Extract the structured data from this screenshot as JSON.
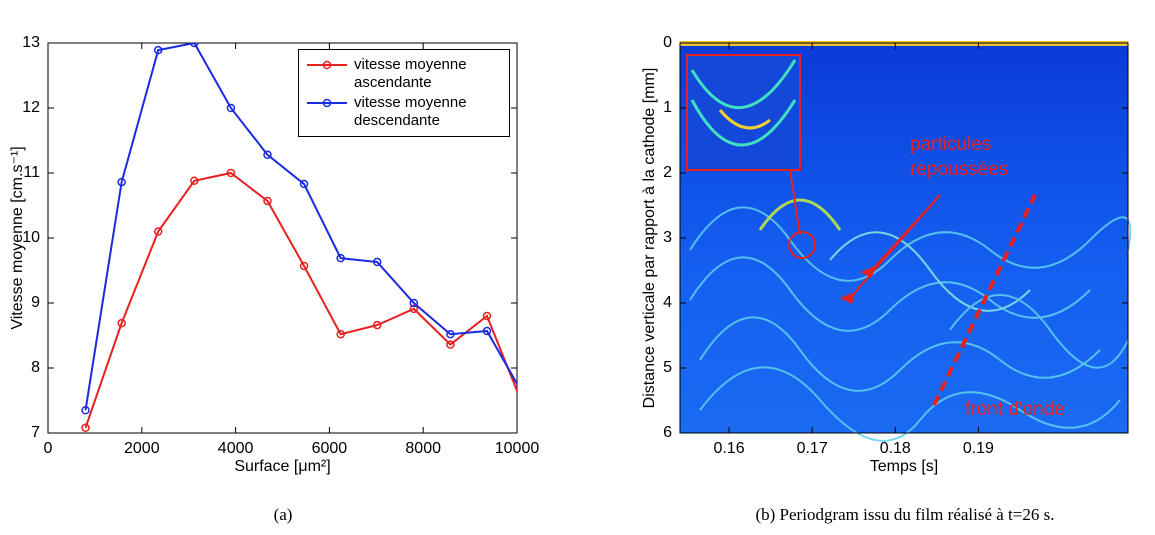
{
  "chart_data": [
    {
      "type": "line",
      "caption": "(a)",
      "xlabel": "Surface [μm²]",
      "ylabel": "Vitesse moyenne [cm.s⁻¹]",
      "x": [
        800,
        1570,
        2350,
        3120,
        3900,
        4680,
        5460,
        6240,
        7020,
        7800,
        8580,
        9360,
        10140
      ],
      "series": [
        {
          "name": "vitesse moyenne ascendante",
          "color": "#e82020",
          "values": [
            7.08,
            8.69,
            10.1,
            10.88,
            11.0,
            10.57,
            9.57,
            8.52,
            8.66,
            8.91,
            8.36,
            8.8,
            7.4
          ]
        },
        {
          "name": "vitesse moyenne descendante",
          "color": "#1a2be0",
          "values": [
            7.35,
            10.86,
            12.89,
            13.0,
            12.0,
            11.28,
            10.83,
            9.69,
            9.63,
            9.0,
            8.52,
            8.57,
            7.58
          ]
        }
      ],
      "xlim": [
        0,
        10000
      ],
      "xticks": [
        0,
        2000,
        4000,
        6000,
        8000,
        10000
      ],
      "ylim": [
        7,
        13
      ],
      "yticks": [
        7,
        8,
        9,
        10,
        11,
        12,
        13
      ],
      "legend": "upper right"
    },
    {
      "type": "image",
      "caption": "(b) Periodgram issu du film réalisé à t=26 s.",
      "xlabel": "Temps [s]",
      "ylabel": "Distance verticale par rapport à la cathode [mm]",
      "xlim": [
        0.1541,
        0.208
      ],
      "xticks": [
        0.16,
        0.17,
        0.18,
        0.19
      ],
      "ylim": [
        6,
        0
      ],
      "yticks": [
        0,
        1,
        2,
        3,
        4,
        5,
        6
      ],
      "annotations": [
        "particules",
        "repoussées",
        "front d'onde"
      ]
    }
  ]
}
